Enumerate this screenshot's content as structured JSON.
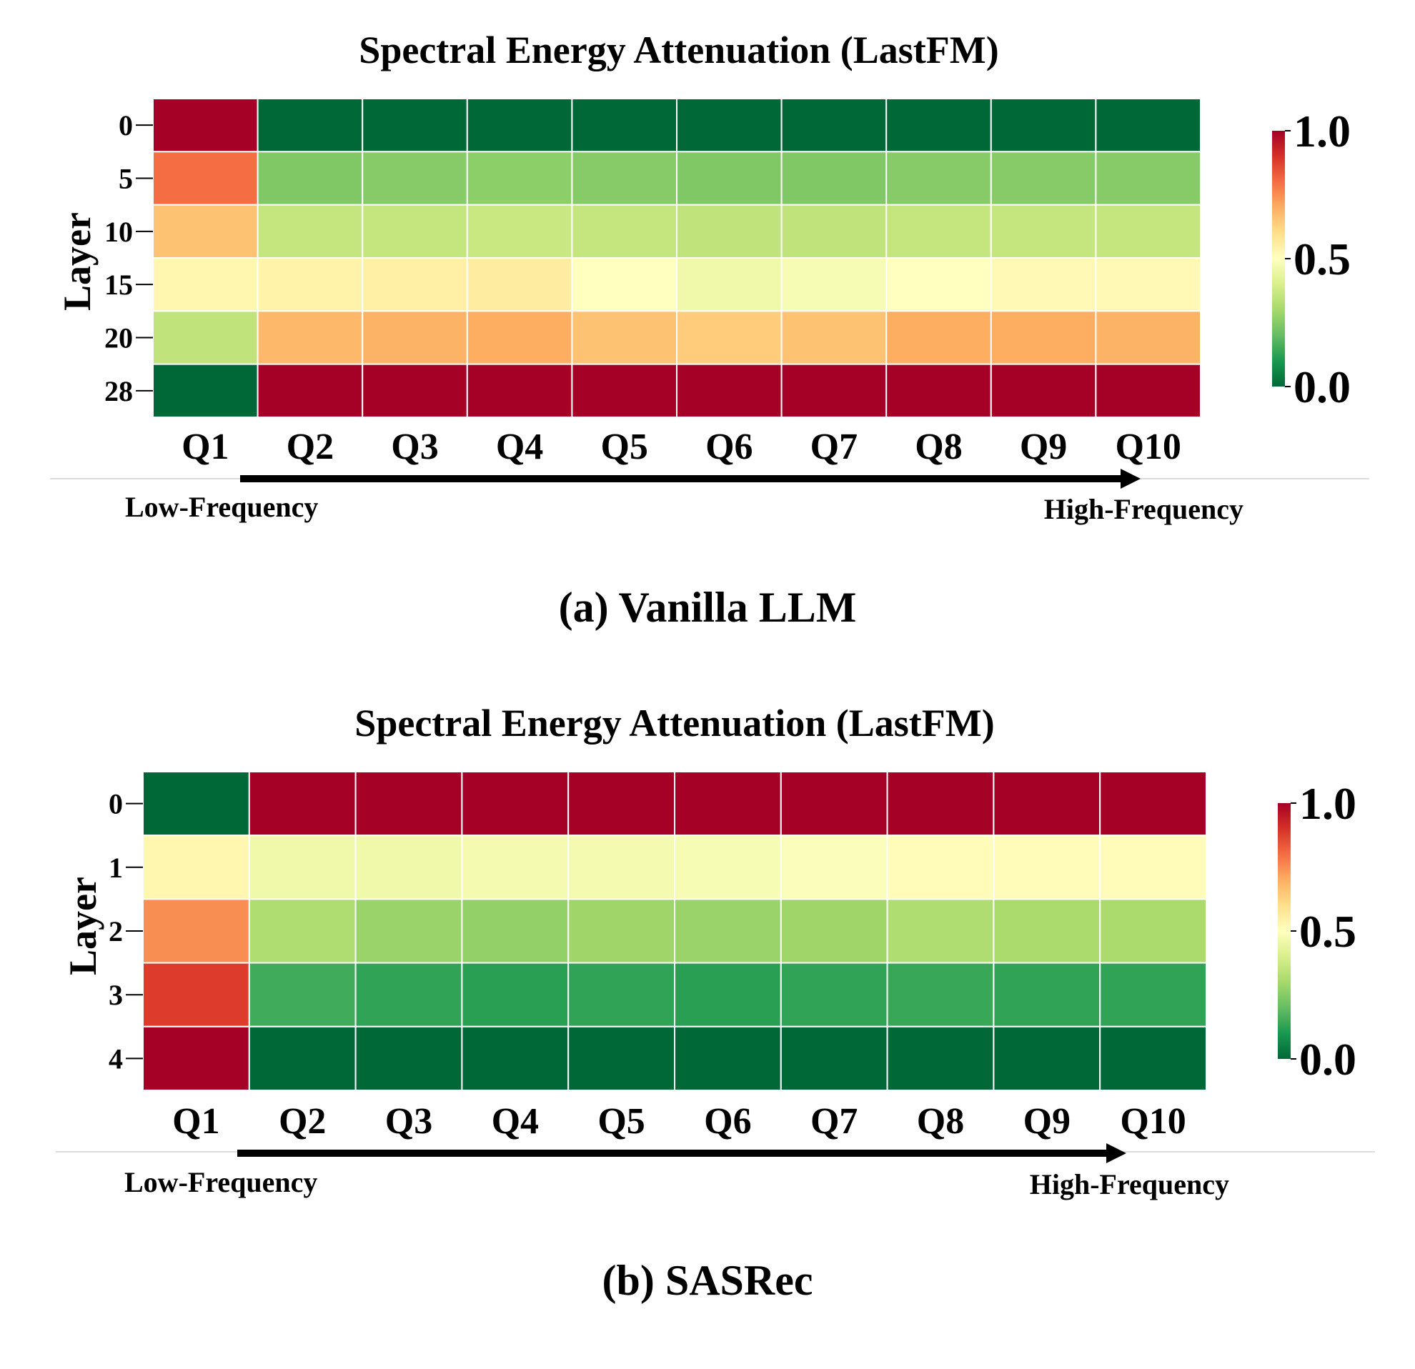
{
  "colors": {
    "scale": [
      "#006837",
      "#1a9850",
      "#66bd63",
      "#a6d96a",
      "#d9ef8b",
      "#ffffbf",
      "#fee08b",
      "#fdae61",
      "#f46d43",
      "#d73027",
      "#a50026"
    ],
    "arrow": "#000000",
    "gridline": "#ffffff"
  },
  "chart_data": [
    {
      "type": "heatmap",
      "title": "Spectral Energy Attenuation (LastFM)",
      "caption": "(a) Vanilla LLM",
      "ylabel": "Layer",
      "xlabel": "",
      "x_categories": [
        "Q1",
        "Q2",
        "Q3",
        "Q4",
        "Q5",
        "Q6",
        "Q7",
        "Q8",
        "Q9",
        "Q10"
      ],
      "y_categories": [
        "0",
        "5",
        "10",
        "15",
        "20",
        "28"
      ],
      "values": [
        [
          1.0,
          0.0,
          0.0,
          0.0,
          0.0,
          0.0,
          0.0,
          0.0,
          0.0,
          0.0
        ],
        [
          0.8,
          0.24,
          0.25,
          0.26,
          0.25,
          0.24,
          0.24,
          0.25,
          0.25,
          0.25
        ],
        [
          0.66,
          0.36,
          0.36,
          0.37,
          0.36,
          0.35,
          0.35,
          0.36,
          0.36,
          0.36
        ],
        [
          0.53,
          0.54,
          0.55,
          0.56,
          0.5,
          0.46,
          0.48,
          0.5,
          0.52,
          0.52
        ],
        [
          0.35,
          0.68,
          0.69,
          0.7,
          0.66,
          0.64,
          0.66,
          0.7,
          0.7,
          0.69
        ],
        [
          0.0,
          1.0,
          1.0,
          1.0,
          1.0,
          1.0,
          1.0,
          1.0,
          1.0,
          1.0
        ]
      ],
      "colorbar": {
        "range": [
          0.0,
          1.0
        ],
        "ticks": [
          "0.0",
          "0.5",
          "1.0"
        ]
      },
      "freq_low": "Low-Frequency",
      "freq_high": "High-Frequency"
    },
    {
      "type": "heatmap",
      "title": "Spectral Energy Attenuation (LastFM)",
      "caption": "(b) SASRec",
      "ylabel": "Layer",
      "xlabel": "",
      "x_categories": [
        "Q1",
        "Q2",
        "Q3",
        "Q4",
        "Q5",
        "Q6",
        "Q7",
        "Q8",
        "Q9",
        "Q10"
      ],
      "y_categories": [
        "0",
        "1",
        "2",
        "3",
        "4"
      ],
      "values": [
        [
          0.0,
          1.0,
          1.0,
          1.0,
          1.0,
          1.0,
          1.0,
          1.0,
          1.0,
          1.0
        ],
        [
          0.53,
          0.46,
          0.46,
          0.47,
          0.47,
          0.48,
          0.49,
          0.51,
          0.51,
          0.51
        ],
        [
          0.75,
          0.32,
          0.28,
          0.27,
          0.29,
          0.28,
          0.29,
          0.32,
          0.31,
          0.31
        ],
        [
          0.88,
          0.15,
          0.13,
          0.12,
          0.13,
          0.12,
          0.13,
          0.14,
          0.13,
          0.13
        ],
        [
          1.0,
          0.0,
          0.0,
          0.0,
          0.0,
          0.0,
          0.0,
          0.0,
          0.0,
          0.0
        ]
      ],
      "colorbar": {
        "range": [
          0.0,
          1.0
        ],
        "ticks": [
          "0.0",
          "0.5",
          "1.0"
        ]
      },
      "freq_low": "Low-Frequency",
      "freq_high": "High-Frequency"
    }
  ]
}
